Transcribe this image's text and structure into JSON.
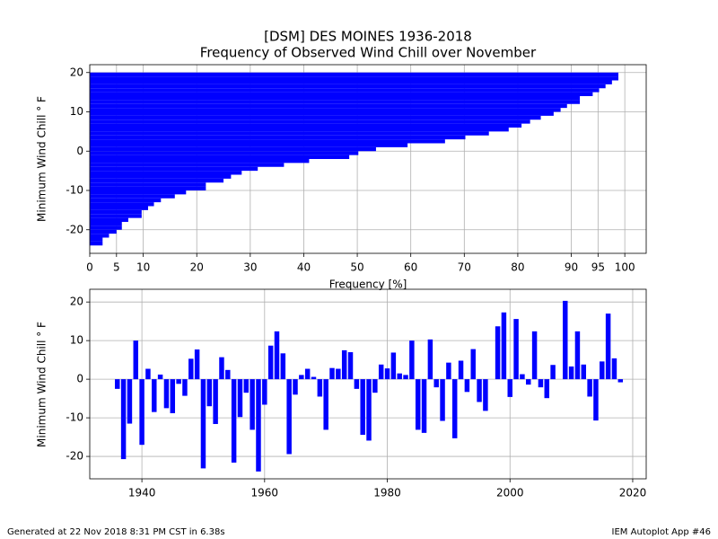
{
  "chart_data": [
    {
      "type": "barh",
      "title": "[DSM] DES MOINES 1936-2018",
      "subtitle": "Frequency of Observed Wind Chill over November",
      "xlabel": "Frequency [%]",
      "ylabel": "Minimum Wind Chill ° F",
      "color": "#0000ff",
      "grid": true,
      "y": [
        -24,
        -23,
        -22,
        -21,
        -20,
        -19,
        -18,
        -17,
        -16,
        -15,
        -14,
        -13,
        -12,
        -11,
        -10,
        -9,
        -8,
        -7,
        -6,
        -5,
        -4,
        -3,
        -2,
        -1,
        0,
        1,
        2,
        3,
        4,
        5,
        6,
        7,
        8,
        9,
        10,
        11,
        12,
        13,
        14,
        15,
        16,
        17,
        18,
        19
      ],
      "values": [
        2.4,
        2.4,
        3.6,
        5,
        6,
        6,
        7.2,
        9.7,
        9.7,
        10.9,
        12,
        13.3,
        15.9,
        18,
        21.7,
        21.7,
        25,
        26.4,
        28.4,
        31.4,
        36.3,
        41,
        48.5,
        50.2,
        53.5,
        59.4,
        66.4,
        70.2,
        74.6,
        78.3,
        80.7,
        82.3,
        84.3,
        86.7,
        88,
        89.2,
        91.6,
        91.6,
        94,
        95.2,
        96.4,
        97.6,
        98.8,
        98.8
      ],
      "xlim": [
        0,
        104
      ],
      "ylim": [
        -26,
        22
      ],
      "xticks": [
        0,
        5,
        10,
        20,
        30,
        40,
        50,
        60,
        70,
        80,
        90,
        95,
        100
      ],
      "yticks": [
        -20,
        -10,
        0,
        10,
        20
      ]
    },
    {
      "type": "bar",
      "ylabel": "Minimum Wind Chill ° F",
      "color": "#0000ff",
      "grid": true,
      "x": [
        1936,
        1937,
        1938,
        1939,
        1940,
        1941,
        1942,
        1943,
        1944,
        1945,
        1946,
        1947,
        1948,
        1949,
        1950,
        1951,
        1952,
        1953,
        1954,
        1955,
        1956,
        1957,
        1958,
        1959,
        1960,
        1961,
        1962,
        1963,
        1964,
        1965,
        1966,
        1967,
        1968,
        1969,
        1970,
        1971,
        1972,
        1973,
        1974,
        1975,
        1976,
        1977,
        1978,
        1979,
        1980,
        1981,
        1982,
        1983,
        1984,
        1985,
        1986,
        1987,
        1988,
        1989,
        1990,
        1991,
        1992,
        1993,
        1994,
        1995,
        1996,
        1997,
        1998,
        1999,
        2000,
        2001,
        2002,
        2003,
        2004,
        2005,
        2006,
        2007,
        2008,
        2009,
        2010,
        2011,
        2012,
        2013,
        2014,
        2015,
        2016,
        2017,
        2018
      ],
      "values": [
        -2.5,
        -20.7,
        -11.5,
        10,
        -17,
        2.7,
        -8.5,
        1.2,
        -7.5,
        -8.8,
        -1.2,
        -4.3,
        5.3,
        7.7,
        -23.1,
        -7,
        -11.6,
        5.7,
        2.4,
        -21.6,
        -9.8,
        -3.5,
        -13.1,
        -23.9,
        -6.6,
        8.7,
        12.4,
        6.7,
        -19.4,
        -4,
        1.1,
        2.7,
        0.6,
        -4.5,
        -13.1,
        2.9,
        2.7,
        7.5,
        7,
        -2.5,
        -14.4,
        -15.9,
        -3.5,
        3.8,
        2.8,
        6.9,
        1.5,
        1.1,
        10,
        -13.1,
        -13.9,
        10.3,
        -2.1,
        -10.8,
        4.3,
        -15.3,
        4.8,
        -3.3,
        7.8,
        -5.9,
        -8.2,
        0,
        13.7,
        17.3,
        -4.6,
        15.6,
        1.3,
        -1.4,
        12.4,
        -2.1,
        -4.9,
        3.7,
        0,
        20.3,
        3.3,
        12.4,
        3.8,
        -4.5,
        -10.7,
        4.6,
        17,
        5.4,
        -0.8
      ],
      "xlim": [
        1931.5,
        2022.2
      ],
      "ylim": [
        -25.8,
        23.3
      ],
      "xticks": [
        1940,
        1960,
        1980,
        2000,
        2020
      ],
      "yticks": [
        -20,
        -10,
        0,
        10,
        20
      ]
    }
  ],
  "footer": {
    "left": "Generated at 22 Nov 2018 8:31 PM CST in 6.38s",
    "right": "IEM Autoplot App #46"
  }
}
